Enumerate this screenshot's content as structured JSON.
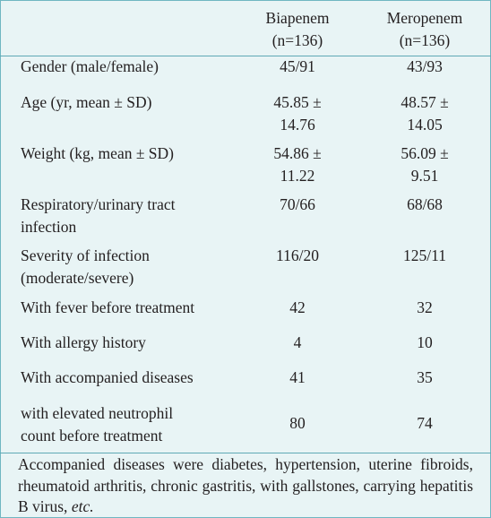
{
  "columns": {
    "biapenem": {
      "name": "Biapenem",
      "n": "(n=136)"
    },
    "meropenem": {
      "name": "Meropenem",
      "n": "(n=136)"
    }
  },
  "rows": [
    {
      "label": [
        "Gender (male/female)"
      ],
      "biapenem": [
        "45/91"
      ],
      "meropenem": [
        "43/93"
      ]
    },
    {
      "label": [
        "Age (yr, mean ± SD)"
      ],
      "biapenem": [
        "45.85 ±",
        "14.76"
      ],
      "meropenem": [
        "48.57 ±",
        "14.05"
      ]
    },
    {
      "label": [
        "Weight (kg, mean ± SD)"
      ],
      "biapenem": [
        "54.86 ±",
        "11.22"
      ],
      "meropenem": [
        "56.09 ±",
        "9.51"
      ]
    },
    {
      "label": [
        "Respiratory/urinary tract",
        "infection"
      ],
      "biapenem": [
        "70/66"
      ],
      "meropenem": [
        "68/68"
      ]
    },
    {
      "label": [
        "Severity of infection",
        "(moderate/severe)"
      ],
      "biapenem": [
        "116/20"
      ],
      "meropenem": [
        "125/11"
      ]
    },
    {
      "label": [
        "With fever before treatment"
      ],
      "biapenem": [
        "42"
      ],
      "meropenem": [
        "32"
      ]
    },
    {
      "label": [
        "With allergy history"
      ],
      "biapenem": [
        "4"
      ],
      "meropenem": [
        "10"
      ]
    },
    {
      "label": [
        "With accompanied diseases"
      ],
      "biapenem": [
        "41"
      ],
      "meropenem": [
        "35"
      ]
    },
    {
      "label": [
        "with elevated neutrophil",
        "count before treatment"
      ],
      "biapenem": [
        "80"
      ],
      "meropenem": [
        "74"
      ]
    }
  ],
  "footnote": {
    "text": "Accompanied diseases were diabetes, hypertension, uterine fibroids, rheumatoid arthritis, chronic gastritis, with gallstones, carrying hepatitis B virus,",
    "etc": "etc."
  }
}
